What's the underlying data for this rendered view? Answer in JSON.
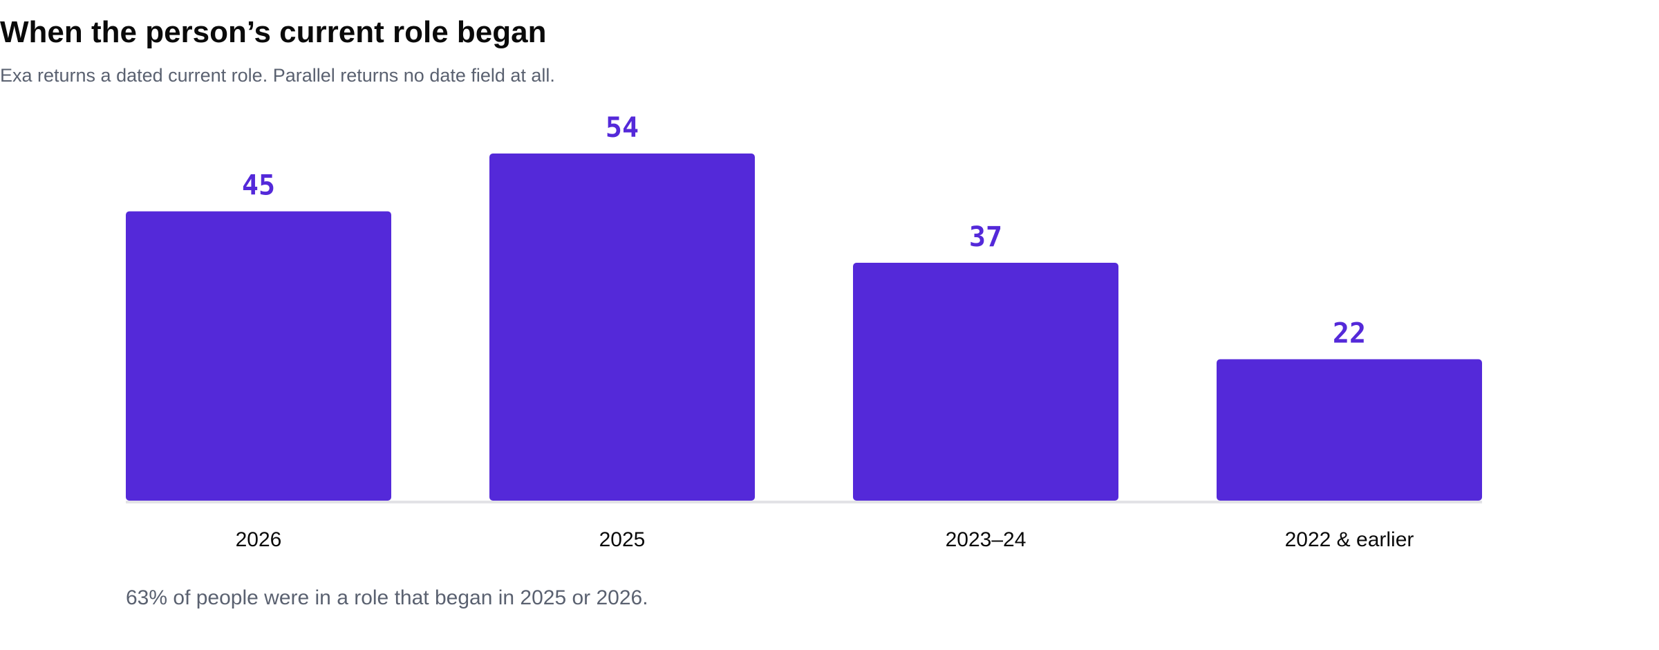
{
  "chart": {
    "title": "When the person’s current role began",
    "subtitle": "Exa returns a dated current role. Parallel returns no date field at all.",
    "footnote": "63% of people were in a role that began in 2025 or 2026."
  },
  "chart_data": {
    "type": "bar",
    "title": "When the person’s current role began",
    "subtitle": "Exa returns a dated current role. Parallel returns no date field at all.",
    "categories": [
      "2026",
      "2025",
      "2023–24",
      "2022 & earlier"
    ],
    "values": [
      45,
      54,
      37,
      22
    ],
    "data_labels": [
      "45",
      "54",
      "37",
      "22"
    ],
    "xlabel": "",
    "ylabel": "",
    "ylim": [
      0,
      54
    ],
    "grid": false,
    "legend": "none",
    "annotation": "63% of people were in a role that began in 2025 or 2026."
  },
  "colors": {
    "bar": "#5429d9",
    "value_label": "#5429d9",
    "axis": "#e2e2e6"
  }
}
